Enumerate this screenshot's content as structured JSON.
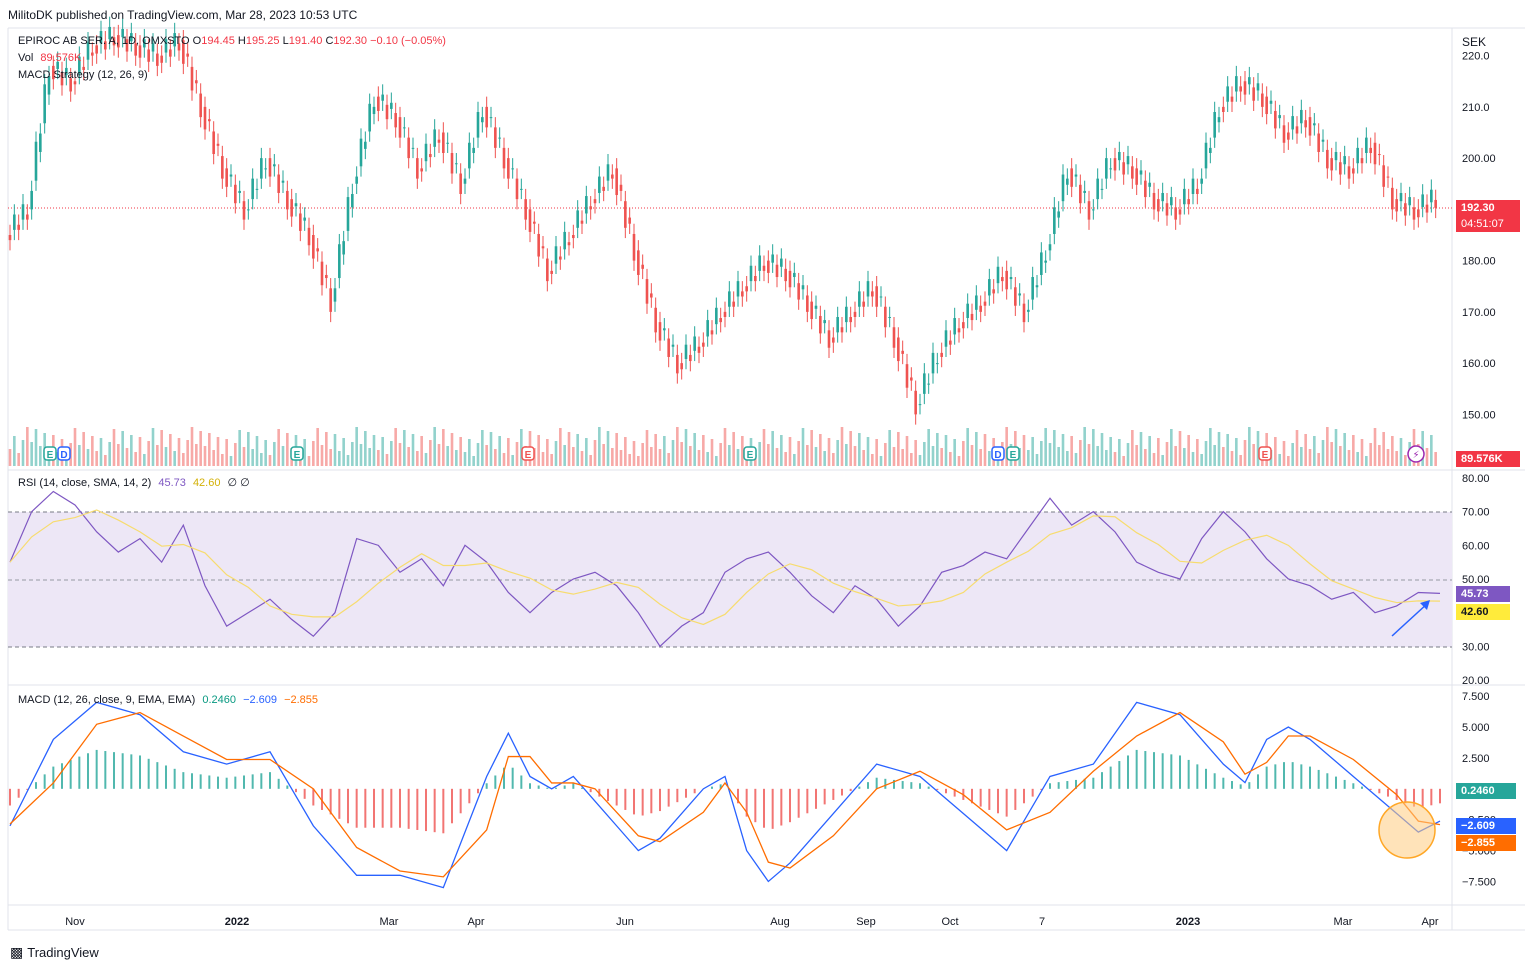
{
  "header": {
    "published": "MilitoDK published on TradingView.com, Mar 28, 2023 10:53 UTC"
  },
  "footer": {
    "brand": "TradingView"
  },
  "price_pane": {
    "symbol": "EPIROC AB SER. A, 1D, OMXSTO",
    "ohlc": {
      "o_label": "O",
      "o": "194.45",
      "h_label": "H",
      "h": "195.25",
      "l_label": "L",
      "l": "191.40",
      "c_label": "C",
      "c": "192.30",
      "change": "−0.10 (−0.05%)"
    },
    "vol_label": "Vol",
    "vol_value": "89.576K",
    "strategy_label": "MACD Strategy (12, 26, 9)",
    "currency": "SEK",
    "last_price_badge": "192.30",
    "countdown_badge": "04:51:07",
    "volume_badge": "89.576K",
    "y_ticks": [
      "220.0",
      "210.0",
      "200.00",
      "190.00",
      "180.00",
      "170.00",
      "160.00",
      "150.00"
    ],
    "earnings_markers": [
      "E",
      "D",
      "E",
      "E",
      "E",
      "D",
      "E",
      "E"
    ]
  },
  "rsi_pane": {
    "label": "RSI (14, close, SMA, 14, 2)",
    "rsi": "45.73",
    "sma": "42.60",
    "extra": "∅  ∅",
    "y_ticks": [
      "80.00",
      "70.00",
      "60.00",
      "50.00",
      "40.00",
      "30.00",
      "20.00"
    ],
    "badge_rsi": "45.73",
    "badge_sma": "42.60"
  },
  "macd_pane": {
    "label": "MACD (12, 26, close, 9, EMA, EMA)",
    "hist": "0.2460",
    "macd": "−2.609",
    "signal": "−2.855",
    "y_ticks": [
      "7.500",
      "5.000",
      "2.500",
      "0",
      "−2.500",
      "−5.000",
      "−7.500"
    ],
    "badge_hist": "0.2460",
    "badge_macd": "−2.609",
    "badge_signal": "−2.855"
  },
  "x_axis": {
    "labels": [
      "Nov",
      "2022",
      "Mar",
      "Apr",
      "Jun",
      "Aug",
      "Sep",
      "Oct",
      "7",
      "2023",
      "Mar",
      "Apr"
    ]
  },
  "colors": {
    "up": "#26a69a",
    "down": "#ef5350",
    "rsi_line": "#7e57c2",
    "rsi_sma": "#f7dc6f",
    "rsi_band": "#ede7f6",
    "macd_line": "#2962ff",
    "signal_line": "#ff6d00",
    "hist_pos": "#26a69a",
    "hist_neg": "#ef5350",
    "price_badge": "#f23645",
    "rsi_badge": "#7e57c2",
    "rsi_sma_badge": "#ffeb3b",
    "macd_badge": "#2962ff",
    "signal_badge": "#ff6d00",
    "hist_badge": "#26a69a"
  },
  "chart_data": {
    "type": "line",
    "title": "EPIROC AB SER. A, 1D, OMXSTO",
    "x": [
      "Nov",
      "2022",
      "Mar",
      "Apr",
      "Jun",
      "Aug",
      "Sep",
      "Oct",
      "7",
      "2023",
      "Mar",
      "Apr"
    ],
    "ylabel": "SEK",
    "ylim": [
      145,
      225
    ],
    "series": [
      {
        "name": "Close",
        "points": [
          [
            0,
            185
          ],
          [
            5,
            190
          ],
          [
            10,
            218
          ],
          [
            15,
            215
          ],
          [
            20,
            222
          ],
          [
            25,
            224
          ],
          [
            30,
            222
          ],
          [
            35,
            220
          ],
          [
            40,
            223
          ],
          [
            45,
            210
          ],
          [
            50,
            198
          ],
          [
            55,
            190
          ],
          [
            60,
            200
          ],
          [
            65,
            192
          ],
          [
            70,
            185
          ],
          [
            75,
            172
          ],
          [
            80,
            195
          ],
          [
            85,
            212
          ],
          [
            90,
            208
          ],
          [
            95,
            198
          ],
          [
            100,
            205
          ],
          [
            105,
            195
          ],
          [
            110,
            210
          ],
          [
            115,
            200
          ],
          [
            120,
            190
          ],
          [
            125,
            178
          ],
          [
            130,
            185
          ],
          [
            135,
            192
          ],
          [
            140,
            198
          ],
          [
            145,
            182
          ],
          [
            150,
            168
          ],
          [
            155,
            160
          ],
          [
            160,
            164
          ],
          [
            165,
            170
          ],
          [
            170,
            175
          ],
          [
            175,
            180
          ],
          [
            180,
            178
          ],
          [
            185,
            172
          ],
          [
            190,
            165
          ],
          [
            195,
            170
          ],
          [
            200,
            175
          ],
          [
            205,
            165
          ],
          [
            210,
            152
          ],
          [
            215,
            162
          ],
          [
            220,
            168
          ],
          [
            225,
            172
          ],
          [
            230,
            178
          ],
          [
            235,
            170
          ],
          [
            240,
            182
          ],
          [
            245,
            198
          ],
          [
            250,
            190
          ],
          [
            255,
            200
          ],
          [
            260,
            198
          ],
          [
            265,
            192
          ],
          [
            270,
            190
          ],
          [
            275,
            195
          ],
          [
            280,
            210
          ],
          [
            285,
            215
          ],
          [
            290,
            212
          ],
          [
            295,
            205
          ],
          [
            300,
            208
          ],
          [
            305,
            200
          ],
          [
            310,
            198
          ],
          [
            315,
            203
          ],
          [
            320,
            192
          ],
          [
            325,
            190
          ],
          [
            330,
            192.3
          ]
        ]
      }
    ],
    "rsi": {
      "name": "RSI",
      "ylim": [
        20,
        80
      ],
      "points": [
        [
          0,
          55
        ],
        [
          5,
          70
        ],
        [
          10,
          76
        ],
        [
          15,
          72
        ],
        [
          20,
          64
        ],
        [
          25,
          58
        ],
        [
          30,
          62
        ],
        [
          35,
          55
        ],
        [
          40,
          66
        ],
        [
          45,
          48
        ],
        [
          50,
          36
        ],
        [
          55,
          40
        ],
        [
          60,
          44
        ],
        [
          65,
          38
        ],
        [
          70,
          33
        ],
        [
          75,
          40
        ],
        [
          80,
          62
        ],
        [
          85,
          60
        ],
        [
          90,
          52
        ],
        [
          95,
          56
        ],
        [
          100,
          48
        ],
        [
          105,
          60
        ],
        [
          110,
          55
        ],
        [
          115,
          46
        ],
        [
          120,
          40
        ],
        [
          125,
          46
        ],
        [
          130,
          50
        ],
        [
          135,
          52
        ],
        [
          140,
          48
        ],
        [
          145,
          40
        ],
        [
          150,
          30
        ],
        [
          155,
          36
        ],
        [
          160,
          40
        ],
        [
          165,
          52
        ],
        [
          170,
          56
        ],
        [
          175,
          58
        ],
        [
          180,
          52
        ],
        [
          185,
          45
        ],
        [
          190,
          40
        ],
        [
          195,
          48
        ],
        [
          200,
          44
        ],
        [
          205,
          36
        ],
        [
          210,
          42
        ],
        [
          215,
          52
        ],
        [
          220,
          54
        ],
        [
          225,
          58
        ],
        [
          230,
          56
        ],
        [
          235,
          65
        ],
        [
          240,
          74
        ],
        [
          245,
          66
        ],
        [
          250,
          70
        ],
        [
          255,
          64
        ],
        [
          260,
          55
        ],
        [
          265,
          52
        ],
        [
          270,
          50
        ],
        [
          275,
          62
        ],
        [
          280,
          70
        ],
        [
          285,
          64
        ],
        [
          290,
          56
        ],
        [
          295,
          50
        ],
        [
          300,
          48
        ],
        [
          305,
          44
        ],
        [
          310,
          46
        ],
        [
          315,
          40
        ],
        [
          320,
          42
        ],
        [
          325,
          46
        ],
        [
          330,
          45.73
        ]
      ]
    },
    "macd": {
      "name": "MACD",
      "ylim": [
        -9,
        8
      ],
      "points": [
        [
          0,
          -3
        ],
        [
          10,
          4
        ],
        [
          20,
          7
        ],
        [
          30,
          6
        ],
        [
          40,
          3
        ],
        [
          50,
          2
        ],
        [
          60,
          3
        ],
        [
          70,
          -3
        ],
        [
          80,
          -7
        ],
        [
          90,
          -7
        ],
        [
          100,
          -8
        ],
        [
          110,
          1
        ],
        [
          115,
          4.5
        ],
        [
          120,
          1
        ],
        [
          125,
          0
        ],
        [
          130,
          1
        ],
        [
          135,
          -1
        ],
        [
          140,
          -3
        ],
        [
          145,
          -5
        ],
        [
          150,
          -4
        ],
        [
          160,
          0
        ],
        [
          165,
          1
        ],
        [
          170,
          -5
        ],
        [
          175,
          -7.5
        ],
        [
          180,
          -6
        ],
        [
          190,
          -2
        ],
        [
          200,
          2
        ],
        [
          210,
          1
        ],
        [
          220,
          -2
        ],
        [
          230,
          -5
        ],
        [
          240,
          1
        ],
        [
          250,
          2
        ],
        [
          260,
          7
        ],
        [
          270,
          6
        ],
        [
          280,
          2
        ],
        [
          285,
          0.5
        ],
        [
          290,
          4
        ],
        [
          295,
          5
        ],
        [
          300,
          4
        ],
        [
          310,
          1
        ],
        [
          320,
          -2
        ],
        [
          325,
          -3.5
        ],
        [
          330,
          -2.609
        ]
      ]
    }
  }
}
